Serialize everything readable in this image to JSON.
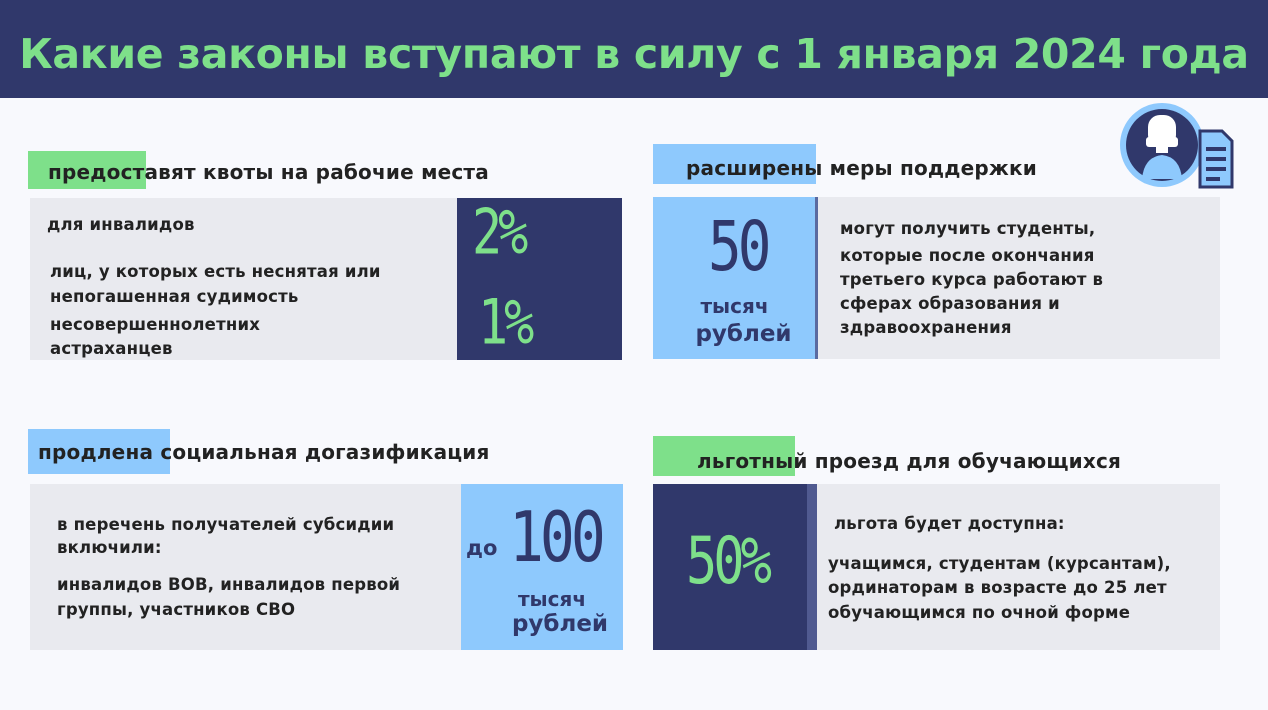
{
  "title": "Какие законы вступают в силу с 1 января 2024 года",
  "icon": "person-document-icon",
  "colors": {
    "navy": "#30386b",
    "green": "#7ee08a",
    "light_blue": "#8ec9fd",
    "panel": "#e9eaef"
  },
  "quotas": {
    "heading": "предоставят квоты на рабочие места",
    "items": [
      {
        "label": "для инвалидов",
        "value": "2%"
      },
      {
        "label": "лиц, у которых есть неснятая или непогашенная судимость несовершеннолетних астраханцев",
        "value": "1%"
      }
    ],
    "line1": "для инвалидов",
    "line2": "лиц, у которых есть неснятая или",
    "line3": "непогашенная судимость",
    "line4": "несовершеннолетних",
    "line5": "астраханцев"
  },
  "support": {
    "heading": "расширены меры поддержки",
    "value": "50",
    "unit_line1": "тысяч",
    "unit_line2": "рублей",
    "text": [
      "могут получить студенты,",
      "которые после окончания",
      "третьего курса работают в",
      "сферах образования и",
      "здравоохранения"
    ]
  },
  "gas": {
    "heading": "продлена социальная догазификация",
    "line1": "в перечень получателей субсидии",
    "line2": "включили:",
    "line3": "инвалидов ВОВ, инвалидов первой",
    "line4": "группы, участников СВО",
    "prefix": "до",
    "value": "100",
    "unit_line1": "тысяч",
    "unit_line2": "рублей"
  },
  "transport": {
    "heading": "льготный проезд для обучающихся",
    "value": "50%",
    "line1": "льгота будет доступна:",
    "line2": "учащимся, студентам (курсантам),",
    "line3": "ординаторам в возрасте до 25 лет",
    "line4": "обучающимся по очной форме"
  }
}
